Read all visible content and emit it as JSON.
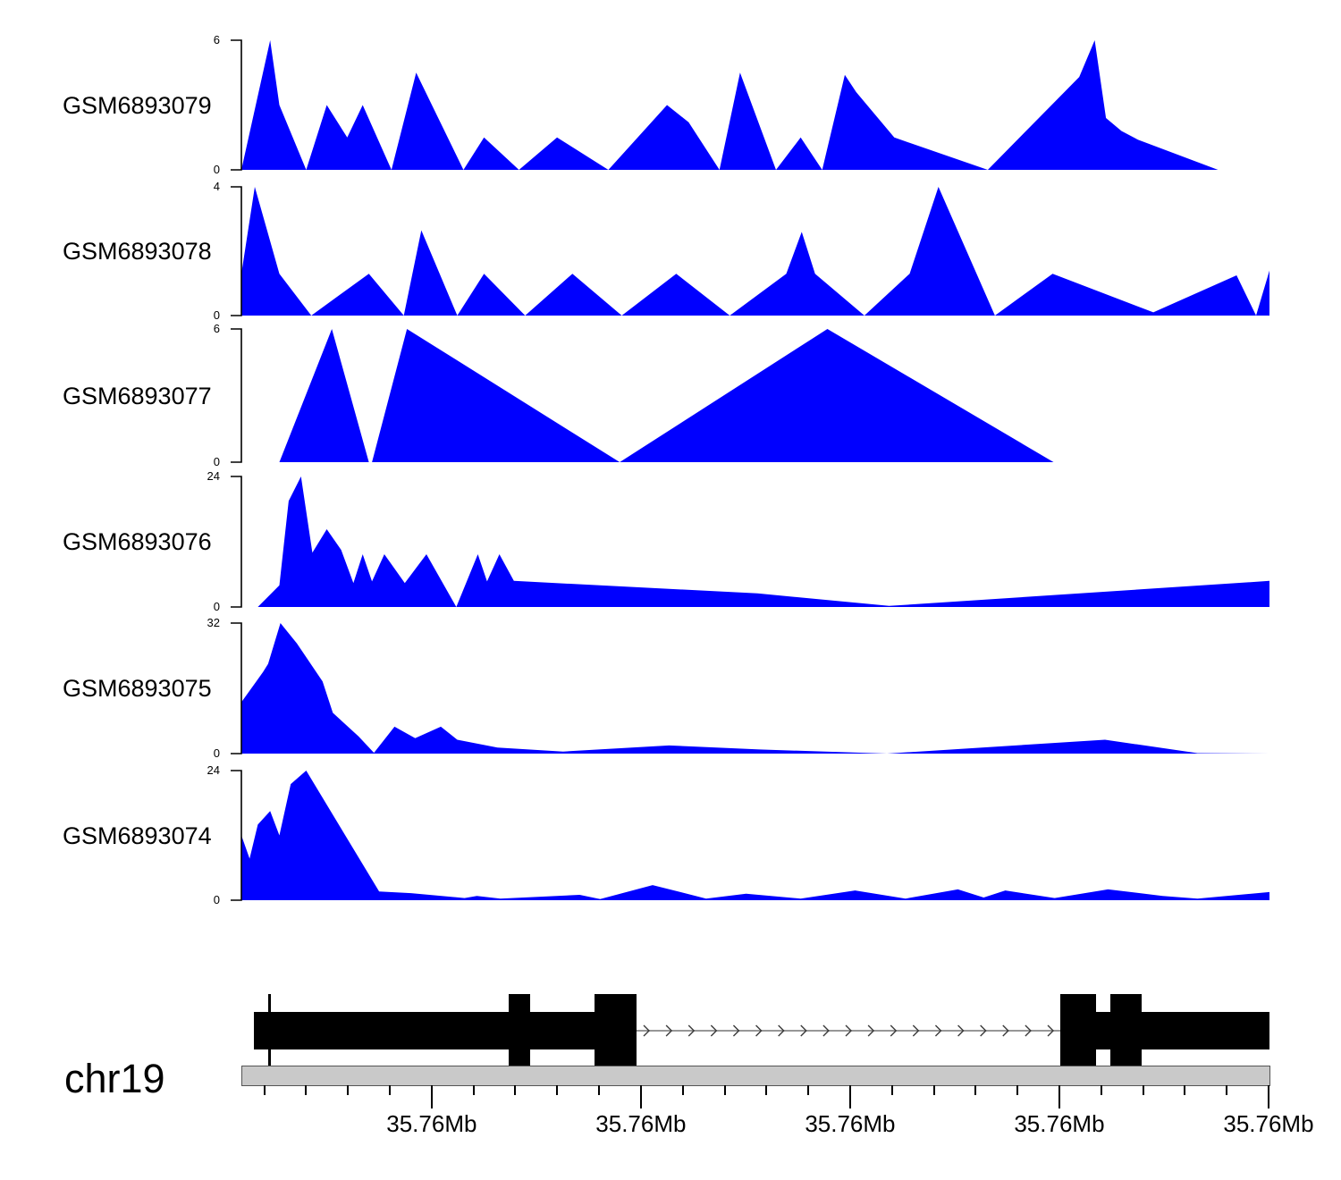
{
  "colors": {
    "area_fill": "#0000FF",
    "gene_fill": "#000000",
    "intron_line": "#757575",
    "intron_arrow": "#3a3a3a",
    "axis_bar_fill": "#C9C9C9",
    "axis_bar_border": "#545454",
    "tick_color": "#000000"
  },
  "chart_data": {
    "type": "area",
    "description": "Genome browser coverage tracks over a region of chromosome 19 with gene model and genomic axis",
    "legend_position": "none",
    "grid": false,
    "tracks": [
      {
        "name": "GSM6893079",
        "ylim": [
          0,
          6
        ],
        "ymax": 6,
        "ymax_label": "6",
        "ymin_label": "0",
        "points": [
          [
            0,
            0
          ],
          [
            0.028,
            6
          ],
          [
            0.037,
            3
          ],
          [
            0.063,
            0
          ],
          [
            0.083,
            3
          ],
          [
            0.103,
            1.5
          ],
          [
            0.118,
            3
          ],
          [
            0.146,
            0
          ],
          [
            0.17,
            4.5
          ],
          [
            0.216,
            0
          ],
          [
            0.236,
            1.5
          ],
          [
            0.27,
            0
          ],
          [
            0.307,
            1.5
          ],
          [
            0.357,
            0
          ],
          [
            0.414,
            3
          ],
          [
            0.435,
            2.2
          ],
          [
            0.465,
            0
          ],
          [
            0.485,
            4.5
          ],
          [
            0.52,
            0
          ],
          [
            0.544,
            1.5
          ],
          [
            0.565,
            0
          ],
          [
            0.581,
            3.2
          ],
          [
            0.587,
            4.4
          ],
          [
            0.598,
            3.6
          ],
          [
            0.635,
            1.5
          ],
          [
            0.726,
            0
          ],
          [
            0.815,
            4.3
          ],
          [
            0.83,
            6
          ],
          [
            0.841,
            2.4
          ],
          [
            0.856,
            1.8
          ],
          [
            0.872,
            1.4
          ],
          [
            0.95,
            0
          ],
          [
            1,
            0
          ]
        ]
      },
      {
        "name": "GSM6893078",
        "ylim": [
          0,
          4
        ],
        "ymax": 4,
        "ymax_label": "4",
        "ymin_label": "0",
        "points": [
          [
            0,
            1.3
          ],
          [
            0.013,
            4
          ],
          [
            0.037,
            1.3
          ],
          [
            0.068,
            0
          ],
          [
            0.124,
            1.3
          ],
          [
            0.158,
            0
          ],
          [
            0.175,
            2.65
          ],
          [
            0.21,
            0
          ],
          [
            0.236,
            1.3
          ],
          [
            0.276,
            0
          ],
          [
            0.322,
            1.3
          ],
          [
            0.37,
            0
          ],
          [
            0.423,
            1.3
          ],
          [
            0.475,
            0
          ],
          [
            0.53,
            1.3
          ],
          [
            0.545,
            2.6
          ],
          [
            0.558,
            1.3
          ],
          [
            0.606,
            0
          ],
          [
            0.65,
            1.3
          ],
          [
            0.678,
            4
          ],
          [
            0.733,
            0
          ],
          [
            0.789,
            1.3
          ],
          [
            0.887,
            0.1
          ],
          [
            0.968,
            1.25
          ],
          [
            0.987,
            0
          ],
          [
            1,
            1.4
          ]
        ]
      },
      {
        "name": "GSM6893077",
        "ylim": [
          0,
          6
        ],
        "ymax": 6,
        "ymax_label": "6",
        "ymin_label": "0",
        "points": [
          [
            0,
            0
          ],
          [
            0.037,
            0
          ],
          [
            0.088,
            6
          ],
          [
            0.124,
            0
          ],
          [
            0.127,
            0
          ],
          [
            0.161,
            6
          ],
          [
            0.368,
            0
          ],
          [
            0.57,
            6
          ],
          [
            0.79,
            0
          ],
          [
            1,
            0
          ]
        ]
      },
      {
        "name": "GSM6893076",
        "ylim": [
          0,
          24
        ],
        "ymax": 24,
        "ymax_label": "24",
        "ymin_label": "0",
        "points": [
          [
            0,
            0
          ],
          [
            0.016,
            0
          ],
          [
            0.037,
            4
          ],
          [
            0.046,
            19.5
          ],
          [
            0.058,
            24
          ],
          [
            0.069,
            10
          ],
          [
            0.083,
            14.3
          ],
          [
            0.097,
            10.5
          ],
          [
            0.109,
            4.4
          ],
          [
            0.118,
            9.7
          ],
          [
            0.127,
            4.7
          ],
          [
            0.139,
            9.7
          ],
          [
            0.159,
            4.4
          ],
          [
            0.18,
            9.7
          ],
          [
            0.209,
            0
          ],
          [
            0.23,
            9.7
          ],
          [
            0.239,
            4.7
          ],
          [
            0.251,
            9.7
          ],
          [
            0.265,
            4.8
          ],
          [
            0.502,
            2.5
          ],
          [
            0.63,
            0.2
          ],
          [
            1,
            4.8
          ]
        ]
      },
      {
        "name": "GSM6893075",
        "ylim": [
          0,
          32
        ],
        "ymax": 32,
        "ymax_label": "32",
        "ymin_label": "0",
        "points": [
          [
            0,
            12.6
          ],
          [
            0.021,
            20
          ],
          [
            0.026,
            22
          ],
          [
            0.038,
            32
          ],
          [
            0.054,
            27
          ],
          [
            0.079,
            17.7
          ],
          [
            0.089,
            10
          ],
          [
            0.114,
            4.2
          ],
          [
            0.129,
            0.2
          ],
          [
            0.149,
            6.6
          ],
          [
            0.169,
            3.8
          ],
          [
            0.194,
            6.6
          ],
          [
            0.21,
            3.4
          ],
          [
            0.249,
            1.5
          ],
          [
            0.313,
            0.5
          ],
          [
            0.416,
            2
          ],
          [
            0.504,
            1
          ],
          [
            0.628,
            0
          ],
          [
            0.84,
            3.4
          ],
          [
            0.93,
            0.1
          ],
          [
            1,
            0
          ]
        ]
      },
      {
        "name": "GSM6893074",
        "ylim": [
          0,
          24
        ],
        "ymax": 24,
        "ymax_label": "24",
        "ymin_label": "0",
        "points": [
          [
            0,
            12
          ],
          [
            0.008,
            7.7
          ],
          [
            0.016,
            14
          ],
          [
            0.028,
            16.5
          ],
          [
            0.037,
            12
          ],
          [
            0.048,
            21.5
          ],
          [
            0.063,
            24
          ],
          [
            0.134,
            1.6
          ],
          [
            0.165,
            1.3
          ],
          [
            0.217,
            0.4
          ],
          [
            0.229,
            0.8
          ],
          [
            0.252,
            0.3
          ],
          [
            0.329,
            1
          ],
          [
            0.349,
            0.2
          ],
          [
            0.4,
            2.8
          ],
          [
            0.452,
            0.3
          ],
          [
            0.491,
            1.2
          ],
          [
            0.544,
            0.3
          ],
          [
            0.597,
            1.8
          ],
          [
            0.646,
            0.3
          ],
          [
            0.697,
            2
          ],
          [
            0.722,
            0.5
          ],
          [
            0.743,
            1.8
          ],
          [
            0.791,
            0.4
          ],
          [
            0.843,
            2
          ],
          [
            0.896,
            0.8
          ],
          [
            0.93,
            0.3
          ],
          [
            1,
            1.5
          ]
        ]
      }
    ],
    "gene_model": {
      "strand": "+",
      "exons": [
        {
          "start": 0.0122,
          "end": 0.2609,
          "type": "utr"
        },
        {
          "start": 0.26,
          "end": 0.2809,
          "type": "cds"
        },
        {
          "start": 0.2809,
          "end": 0.3435,
          "type": "utr"
        },
        {
          "start": 0.3435,
          "end": 0.3843,
          "type": "cds"
        },
        {
          "start": 0.7965,
          "end": 0.8313,
          "type": "cds"
        },
        {
          "start": 0.8313,
          "end": 0.8452,
          "type": "utr"
        },
        {
          "start": 0.8452,
          "end": 0.8757,
          "type": "cds"
        },
        {
          "start": 0.8757,
          "end": 1.0,
          "type": "utr"
        }
      ],
      "intron": {
        "start": 0.3843,
        "end": 0.7965,
        "arrow_count": 19
      },
      "position_tick": 0.027
    },
    "chromosome_axis": {
      "chromosome": "chr19",
      "major_tick_labels": [
        "35.76Mb",
        "35.76Mb",
        "35.76Mb",
        "35.76Mb",
        "35.76Mb"
      ],
      "minor_tick_start_fraction": 0.0223,
      "minor_tick_step_fraction": 0.0407,
      "tick_count": 25,
      "majors_every": 5
    }
  }
}
